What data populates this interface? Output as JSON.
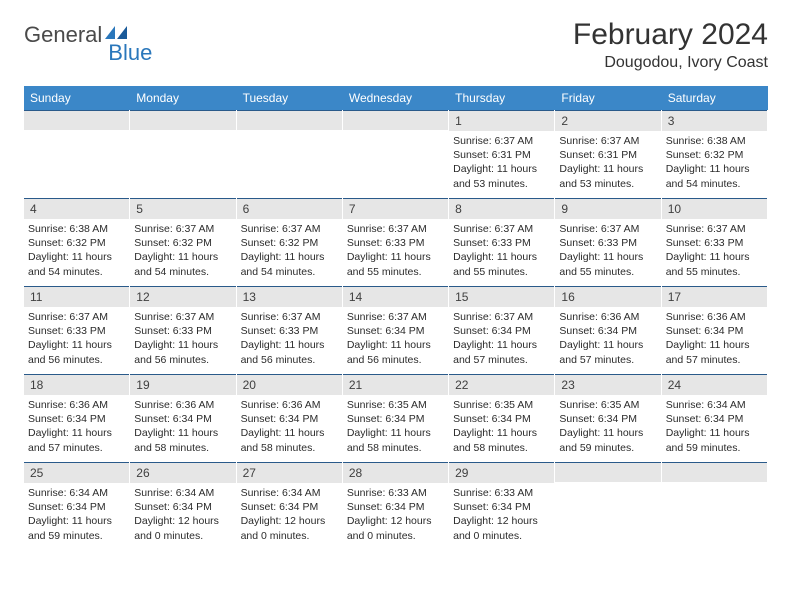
{
  "logo": {
    "general": "General",
    "blue": "Blue"
  },
  "title": "February 2024",
  "location": "Dougodou, Ivory Coast",
  "colors": {
    "header_bg": "#3b87c8",
    "header_text": "#ffffff",
    "daynum_bg": "#e6e6e6",
    "rule": "#2a5a8a",
    "brand_blue": "#2a77bb",
    "text": "#2b2b2b"
  },
  "dow": [
    "Sunday",
    "Monday",
    "Tuesday",
    "Wednesday",
    "Thursday",
    "Friday",
    "Saturday"
  ],
  "weeks": [
    [
      null,
      null,
      null,
      null,
      {
        "n": "1",
        "sr": "Sunrise: 6:37 AM",
        "ss": "Sunset: 6:31 PM",
        "d1": "Daylight: 11 hours",
        "d2": "and 53 minutes."
      },
      {
        "n": "2",
        "sr": "Sunrise: 6:37 AM",
        "ss": "Sunset: 6:31 PM",
        "d1": "Daylight: 11 hours",
        "d2": "and 53 minutes."
      },
      {
        "n": "3",
        "sr": "Sunrise: 6:38 AM",
        "ss": "Sunset: 6:32 PM",
        "d1": "Daylight: 11 hours",
        "d2": "and 54 minutes."
      }
    ],
    [
      {
        "n": "4",
        "sr": "Sunrise: 6:38 AM",
        "ss": "Sunset: 6:32 PM",
        "d1": "Daylight: 11 hours",
        "d2": "and 54 minutes."
      },
      {
        "n": "5",
        "sr": "Sunrise: 6:37 AM",
        "ss": "Sunset: 6:32 PM",
        "d1": "Daylight: 11 hours",
        "d2": "and 54 minutes."
      },
      {
        "n": "6",
        "sr": "Sunrise: 6:37 AM",
        "ss": "Sunset: 6:32 PM",
        "d1": "Daylight: 11 hours",
        "d2": "and 54 minutes."
      },
      {
        "n": "7",
        "sr": "Sunrise: 6:37 AM",
        "ss": "Sunset: 6:33 PM",
        "d1": "Daylight: 11 hours",
        "d2": "and 55 minutes."
      },
      {
        "n": "8",
        "sr": "Sunrise: 6:37 AM",
        "ss": "Sunset: 6:33 PM",
        "d1": "Daylight: 11 hours",
        "d2": "and 55 minutes."
      },
      {
        "n": "9",
        "sr": "Sunrise: 6:37 AM",
        "ss": "Sunset: 6:33 PM",
        "d1": "Daylight: 11 hours",
        "d2": "and 55 minutes."
      },
      {
        "n": "10",
        "sr": "Sunrise: 6:37 AM",
        "ss": "Sunset: 6:33 PM",
        "d1": "Daylight: 11 hours",
        "d2": "and 55 minutes."
      }
    ],
    [
      {
        "n": "11",
        "sr": "Sunrise: 6:37 AM",
        "ss": "Sunset: 6:33 PM",
        "d1": "Daylight: 11 hours",
        "d2": "and 56 minutes."
      },
      {
        "n": "12",
        "sr": "Sunrise: 6:37 AM",
        "ss": "Sunset: 6:33 PM",
        "d1": "Daylight: 11 hours",
        "d2": "and 56 minutes."
      },
      {
        "n": "13",
        "sr": "Sunrise: 6:37 AM",
        "ss": "Sunset: 6:33 PM",
        "d1": "Daylight: 11 hours",
        "d2": "and 56 minutes."
      },
      {
        "n": "14",
        "sr": "Sunrise: 6:37 AM",
        "ss": "Sunset: 6:34 PM",
        "d1": "Daylight: 11 hours",
        "d2": "and 56 minutes."
      },
      {
        "n": "15",
        "sr": "Sunrise: 6:37 AM",
        "ss": "Sunset: 6:34 PM",
        "d1": "Daylight: 11 hours",
        "d2": "and 57 minutes."
      },
      {
        "n": "16",
        "sr": "Sunrise: 6:36 AM",
        "ss": "Sunset: 6:34 PM",
        "d1": "Daylight: 11 hours",
        "d2": "and 57 minutes."
      },
      {
        "n": "17",
        "sr": "Sunrise: 6:36 AM",
        "ss": "Sunset: 6:34 PM",
        "d1": "Daylight: 11 hours",
        "d2": "and 57 minutes."
      }
    ],
    [
      {
        "n": "18",
        "sr": "Sunrise: 6:36 AM",
        "ss": "Sunset: 6:34 PM",
        "d1": "Daylight: 11 hours",
        "d2": "and 57 minutes."
      },
      {
        "n": "19",
        "sr": "Sunrise: 6:36 AM",
        "ss": "Sunset: 6:34 PM",
        "d1": "Daylight: 11 hours",
        "d2": "and 58 minutes."
      },
      {
        "n": "20",
        "sr": "Sunrise: 6:36 AM",
        "ss": "Sunset: 6:34 PM",
        "d1": "Daylight: 11 hours",
        "d2": "and 58 minutes."
      },
      {
        "n": "21",
        "sr": "Sunrise: 6:35 AM",
        "ss": "Sunset: 6:34 PM",
        "d1": "Daylight: 11 hours",
        "d2": "and 58 minutes."
      },
      {
        "n": "22",
        "sr": "Sunrise: 6:35 AM",
        "ss": "Sunset: 6:34 PM",
        "d1": "Daylight: 11 hours",
        "d2": "and 58 minutes."
      },
      {
        "n": "23",
        "sr": "Sunrise: 6:35 AM",
        "ss": "Sunset: 6:34 PM",
        "d1": "Daylight: 11 hours",
        "d2": "and 59 minutes."
      },
      {
        "n": "24",
        "sr": "Sunrise: 6:34 AM",
        "ss": "Sunset: 6:34 PM",
        "d1": "Daylight: 11 hours",
        "d2": "and 59 minutes."
      }
    ],
    [
      {
        "n": "25",
        "sr": "Sunrise: 6:34 AM",
        "ss": "Sunset: 6:34 PM",
        "d1": "Daylight: 11 hours",
        "d2": "and 59 minutes."
      },
      {
        "n": "26",
        "sr": "Sunrise: 6:34 AM",
        "ss": "Sunset: 6:34 PM",
        "d1": "Daylight: 12 hours",
        "d2": "and 0 minutes."
      },
      {
        "n": "27",
        "sr": "Sunrise: 6:34 AM",
        "ss": "Sunset: 6:34 PM",
        "d1": "Daylight: 12 hours",
        "d2": "and 0 minutes."
      },
      {
        "n": "28",
        "sr": "Sunrise: 6:33 AM",
        "ss": "Sunset: 6:34 PM",
        "d1": "Daylight: 12 hours",
        "d2": "and 0 minutes."
      },
      {
        "n": "29",
        "sr": "Sunrise: 6:33 AM",
        "ss": "Sunset: 6:34 PM",
        "d1": "Daylight: 12 hours",
        "d2": "and 0 minutes."
      },
      null,
      null
    ]
  ]
}
